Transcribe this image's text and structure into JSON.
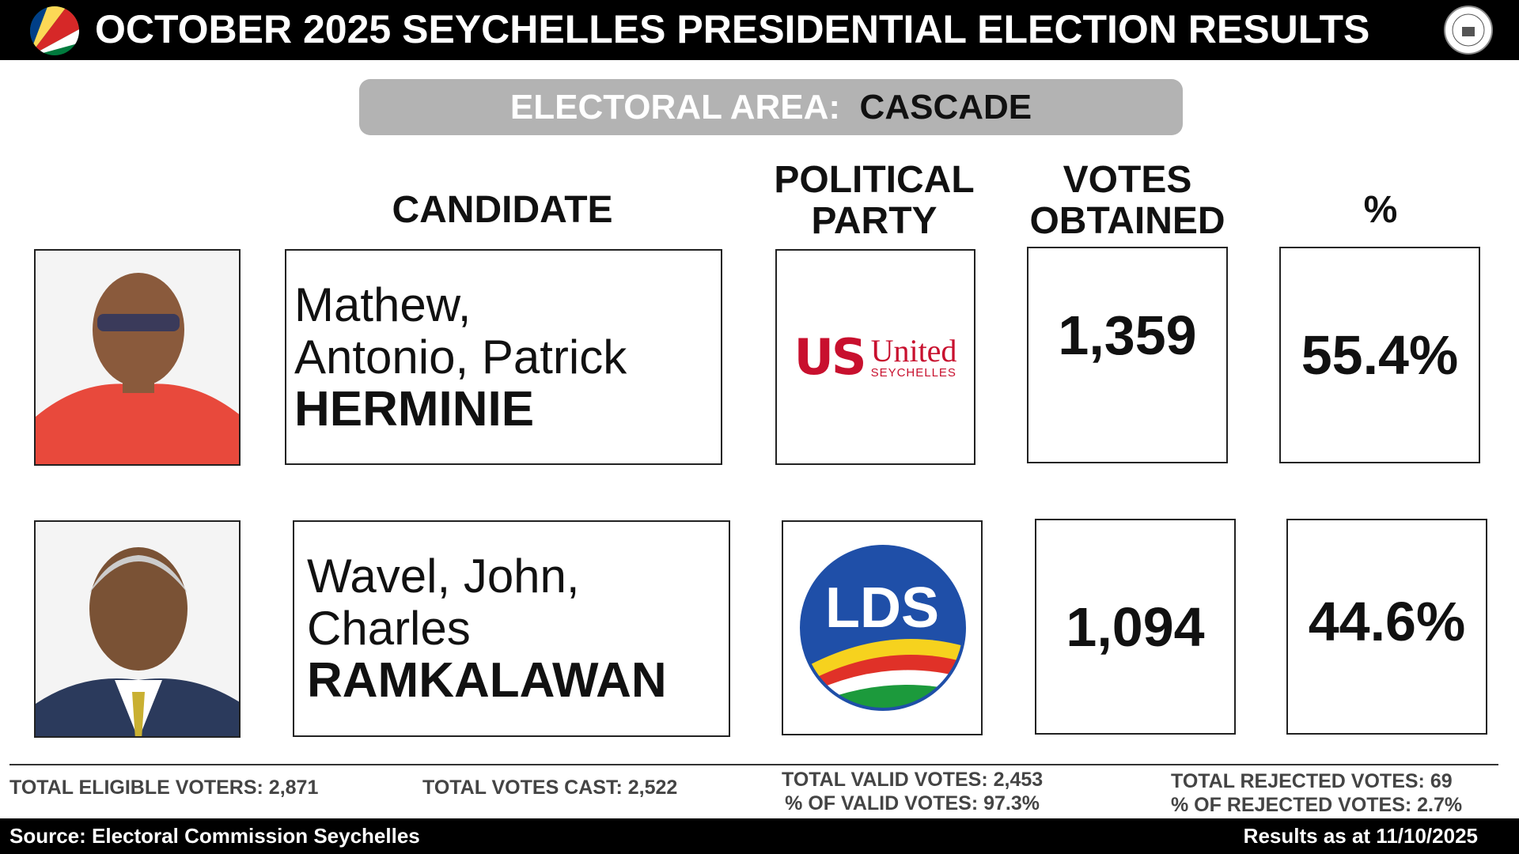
{
  "header": {
    "title": "OCTOBER 2025 SEYCHELLES PRESIDENTIAL ELECTION RESULTS"
  },
  "electoral_area": {
    "label": "ELECTORAL AREA:",
    "name": "CASCADE"
  },
  "columns": [
    "CANDIDATE",
    "POLITICAL PARTY",
    "VOTES OBTAINED",
    "%"
  ],
  "candidates": [
    {
      "given_names": [
        "Mathew,",
        "Antonio, Patrick"
      ],
      "surname": "HERMINIE",
      "party_logo": {
        "mark": "US",
        "name": "United",
        "sub": "SEYCHELLES"
      },
      "votes": "1,359",
      "percent": "55.4%"
    },
    {
      "given_names": [
        "Wavel, John,",
        "Charles"
      ],
      "surname": "RAMKALAWAN",
      "party_logo": {
        "mark": "LDS"
      },
      "votes": "1,094",
      "percent": "44.6%"
    }
  ],
  "totals": {
    "eligible": "TOTAL ELIGIBLE VOTERS: 2,871",
    "cast": "TOTAL VOTES CAST: 2,522",
    "valid": "TOTAL VALID VOTES: 2,453",
    "valid_pct": "% OF VALID VOTES: 97.3%",
    "rejected": "TOTAL REJECTED VOTES: 69",
    "rejected_pct": "% OF REJECTED VOTES: 2.7%"
  },
  "footer": {
    "source": "Source: Electoral Commission Seychelles",
    "date": "Results as at 11/10/2025"
  }
}
